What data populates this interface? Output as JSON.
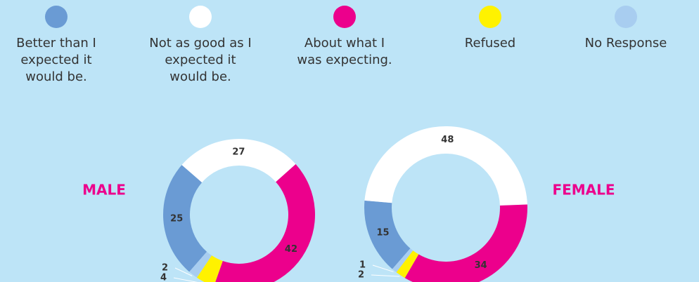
{
  "chart_data": {
    "type": "donut",
    "categories": [
      "Better than I expected it would be.",
      "Not as good as I expected it would be.",
      "About what I was expecting.",
      "Refused",
      "No Response"
    ],
    "colors": [
      "#6a9bd4",
      "#ffffff",
      "#ec008c",
      "#fff200",
      "#a8cdf0"
    ],
    "series": [
      {
        "name": "MALE",
        "color": "#ec008c",
        "values": [
          25,
          27,
          42,
          4,
          2
        ]
      },
      {
        "name": "FEMALE",
        "color": "#ec008c",
        "values": [
          15,
          48,
          34,
          2,
          1
        ]
      }
    ]
  }
}
